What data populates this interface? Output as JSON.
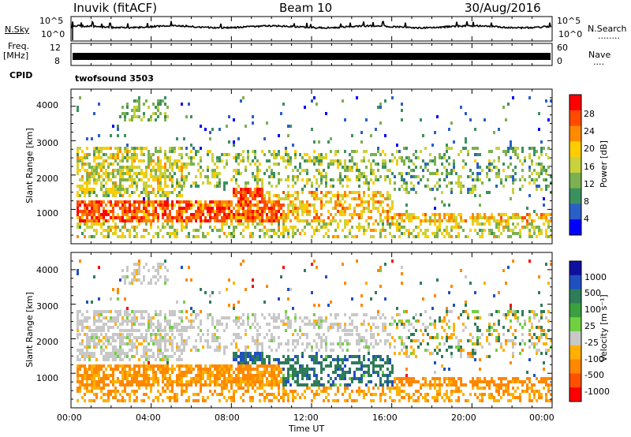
{
  "header": {
    "station": "Inuvik (fitACF)",
    "beam": "Beam 10",
    "date": "30/Aug/2016"
  },
  "nsky_panel": {
    "label": "N.Sky",
    "y_ticks": [
      "10^5",
      "10^0"
    ],
    "right_ticks": [
      "10^5",
      "10^0"
    ],
    "right_label": "N.Search",
    "right_dots": "........"
  },
  "freq_panel": {
    "label_line1": "Freq.",
    "label_line2": "[MHz]",
    "y_ticks": [
      "12",
      "8"
    ],
    "right_ticks": [
      "60",
      "0"
    ],
    "right_label": "Nave",
    "right_dots": "...."
  },
  "cpid_panel": {
    "label": "CPID",
    "program": "twofsound 3503"
  },
  "power_panel": {
    "ylabel": "Slant Range [km]",
    "y_ticks": [
      "4000",
      "3000",
      "2000",
      "1000"
    ],
    "colorbar_label": "Power [dB]",
    "colorbar_ticks": [
      "28",
      "24",
      "20",
      "16",
      "12",
      "8",
      "4"
    ],
    "colorbar_colors": [
      "#ff0000",
      "#ff4a00",
      "#ff8a00",
      "#ffcc00",
      "#c8d23c",
      "#7cb050",
      "#3c9060",
      "#2a5fc8",
      "#0000ff"
    ]
  },
  "velocity_panel": {
    "ylabel": "Slant Range [km]",
    "y_ticks": [
      "4000",
      "3000",
      "2000",
      "1000"
    ],
    "colorbar_label": "Velocity [m s⁻¹]",
    "colorbar_ticks": [
      "1000",
      "500",
      "100",
      "25",
      "-25",
      "-100",
      "-500",
      "-1000"
    ],
    "colorbar_colors": [
      "#1010a0",
      "#2050c0",
      "#2e7d58",
      "#3aa040",
      "#70d040",
      "#c8c8c8",
      "#ffb000",
      "#ff8800",
      "#ff5000",
      "#ff0000"
    ]
  },
  "x_axis": {
    "label": "Time UT",
    "ticks": [
      "00:00",
      "04:00",
      "08:00",
      "12:00",
      "16:00",
      "20:00",
      "00:00"
    ]
  },
  "chart_data": {
    "type": "heatmap",
    "x_range": [
      "00:00",
      "00:00"
    ],
    "y_range": [
      0,
      4500
    ],
    "colors": {
      "power": [
        "#ff0000",
        "#ff4a00",
        "#ff8a00",
        "#ffcc00",
        "#c8d23c",
        "#7cb050",
        "#3c9060",
        "#2a5fc8",
        "#0000ff"
      ],
      "velocity": [
        "#1010a0",
        "#2050c0",
        "#2e7d58",
        "#70d040",
        "#c8c8c8",
        "#ffb000",
        "#ff8800",
        "#ff0000"
      ]
    }
  }
}
